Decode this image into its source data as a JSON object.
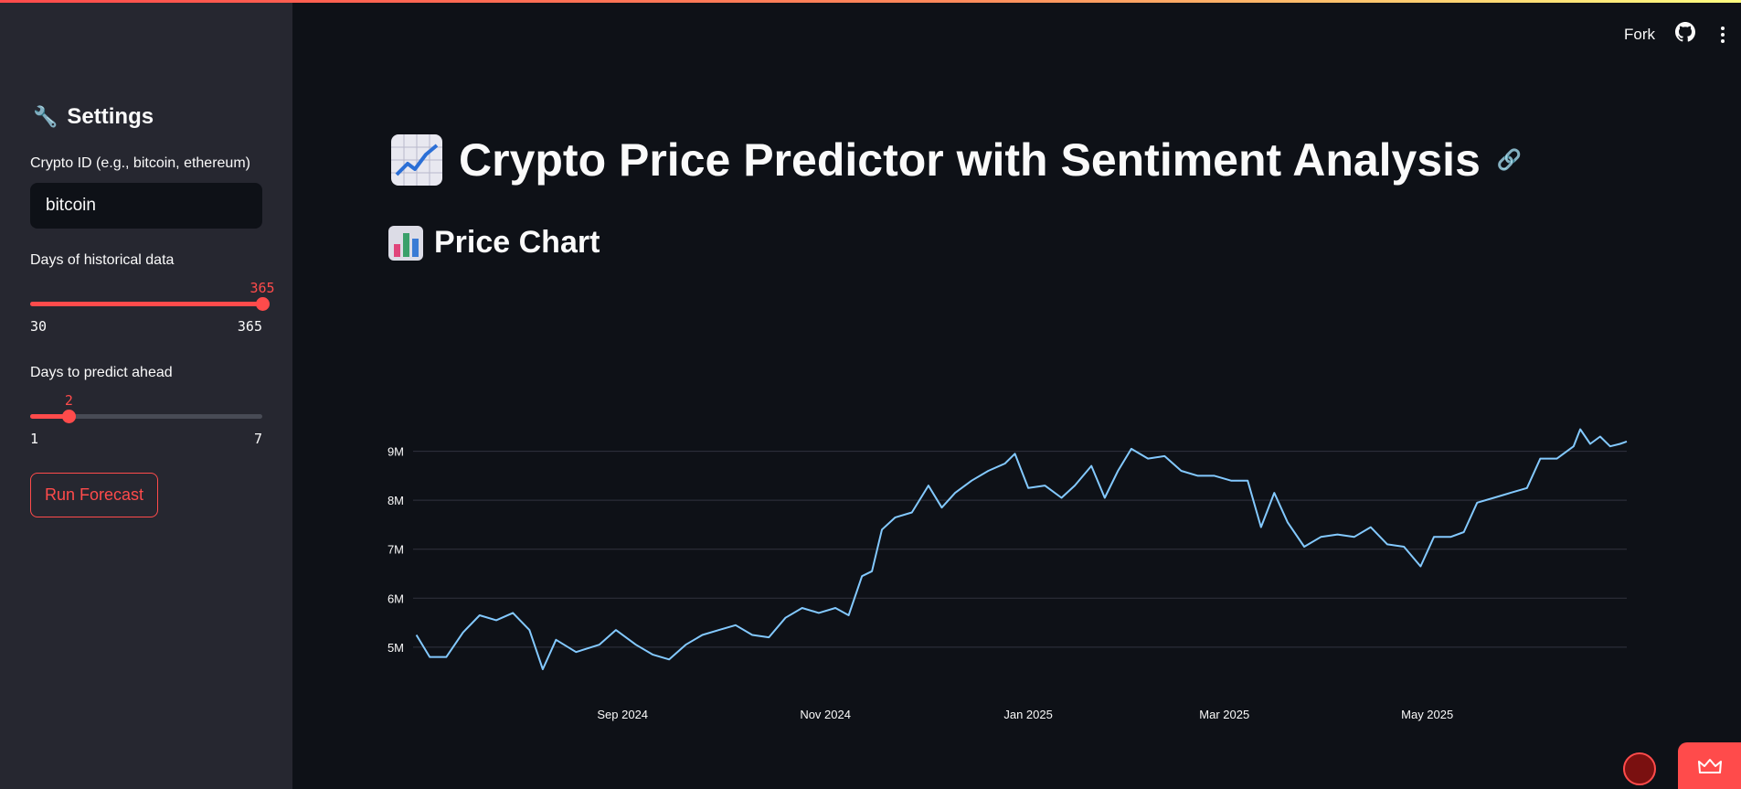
{
  "sidebar": {
    "title": "Settings",
    "title_icon": "wrench-icon",
    "crypto_label": "Crypto ID (e.g., bitcoin, ethereum)",
    "crypto_value": "bitcoin",
    "days_label": "Days of historical data",
    "days_value": "365",
    "days_min": "30",
    "days_max": "365",
    "days_fraction": 1.0,
    "predict_label": "Days to predict ahead",
    "predict_value": "2",
    "predict_min": "1",
    "predict_max": "7",
    "predict_fraction": 0.1667,
    "run_button": "Run Forecast"
  },
  "header": {
    "fork_label": "Fork"
  },
  "main": {
    "title": "Crypto Price Predictor with Sentiment Analysis",
    "section_title": "Price Chart"
  },
  "colors": {
    "accent": "#ff4b4b",
    "line": "#83c9ff",
    "background": "#0e1117",
    "sidebar": "#262730"
  },
  "chart_data": {
    "type": "line",
    "title": "",
    "xlabel": "",
    "ylabel": "",
    "y_ticks": [
      5000000,
      6000000,
      7000000,
      8000000,
      9000000
    ],
    "y_tick_labels": [
      "5M",
      "6M",
      "7M",
      "8M",
      "9M"
    ],
    "ylim": [
      4400000,
      10000000
    ],
    "x_ticks": [
      "2024-09-01",
      "2024-11-01",
      "2025-01-01",
      "2025-03-01",
      "2025-05-01"
    ],
    "x_tick_labels": [
      "Sep 2024",
      "Nov 2024",
      "Jan 2025",
      "Mar 2025",
      "May 2025"
    ],
    "xlim": [
      "2024-06-30",
      "2025-06-30"
    ],
    "grid": true,
    "series": [
      {
        "color": "#83c9ff",
        "points": [
          [
            "2024-07-01",
            5250000
          ],
          [
            "2024-07-05",
            4800000
          ],
          [
            "2024-07-10",
            4800000
          ],
          [
            "2024-07-15",
            5300000
          ],
          [
            "2024-07-20",
            5650000
          ],
          [
            "2024-07-25",
            5550000
          ],
          [
            "2024-07-30",
            5700000
          ],
          [
            "2024-08-04",
            5350000
          ],
          [
            "2024-08-08",
            4550000
          ],
          [
            "2024-08-12",
            5150000
          ],
          [
            "2024-08-18",
            4900000
          ],
          [
            "2024-08-25",
            5050000
          ],
          [
            "2024-08-30",
            5350000
          ],
          [
            "2024-09-05",
            5050000
          ],
          [
            "2024-09-10",
            4850000
          ],
          [
            "2024-09-15",
            4750000
          ],
          [
            "2024-09-20",
            5050000
          ],
          [
            "2024-09-25",
            5250000
          ],
          [
            "2024-09-30",
            5350000
          ],
          [
            "2024-10-05",
            5450000
          ],
          [
            "2024-10-10",
            5250000
          ],
          [
            "2024-10-15",
            5200000
          ],
          [
            "2024-10-20",
            5600000
          ],
          [
            "2024-10-25",
            5800000
          ],
          [
            "2024-10-30",
            5700000
          ],
          [
            "2024-11-04",
            5800000
          ],
          [
            "2024-11-08",
            5650000
          ],
          [
            "2024-11-12",
            6450000
          ],
          [
            "2024-11-15",
            6550000
          ],
          [
            "2024-11-18",
            7400000
          ],
          [
            "2024-11-22",
            7650000
          ],
          [
            "2024-11-27",
            7750000
          ],
          [
            "2024-12-02",
            8300000
          ],
          [
            "2024-12-06",
            7850000
          ],
          [
            "2024-12-10",
            8150000
          ],
          [
            "2024-12-15",
            8400000
          ],
          [
            "2024-12-20",
            8600000
          ],
          [
            "2024-12-25",
            8750000
          ],
          [
            "2024-12-28",
            8950000
          ],
          [
            "2025-01-01",
            8250000
          ],
          [
            "2025-01-06",
            8300000
          ],
          [
            "2025-01-11",
            8050000
          ],
          [
            "2025-01-15",
            8300000
          ],
          [
            "2025-01-20",
            8700000
          ],
          [
            "2025-01-24",
            8050000
          ],
          [
            "2025-01-28",
            8600000
          ],
          [
            "2025-02-01",
            9050000
          ],
          [
            "2025-02-06",
            8850000
          ],
          [
            "2025-02-11",
            8900000
          ],
          [
            "2025-02-16",
            8600000
          ],
          [
            "2025-02-21",
            8500000
          ],
          [
            "2025-02-26",
            8500000
          ],
          [
            "2025-03-03",
            8400000
          ],
          [
            "2025-03-08",
            8400000
          ],
          [
            "2025-03-12",
            7450000
          ],
          [
            "2025-03-16",
            8150000
          ],
          [
            "2025-03-20",
            7550000
          ],
          [
            "2025-03-25",
            7050000
          ],
          [
            "2025-03-30",
            7250000
          ],
          [
            "2025-04-04",
            7300000
          ],
          [
            "2025-04-09",
            7250000
          ],
          [
            "2025-04-14",
            7450000
          ],
          [
            "2025-04-19",
            7100000
          ],
          [
            "2025-04-24",
            7050000
          ],
          [
            "2025-04-29",
            6650000
          ],
          [
            "2025-05-03",
            7250000
          ],
          [
            "2025-05-08",
            7250000
          ],
          [
            "2025-05-12",
            7350000
          ],
          [
            "2025-05-16",
            7950000
          ],
          [
            "2025-05-21",
            8050000
          ],
          [
            "2025-05-26",
            8150000
          ],
          [
            "2025-05-31",
            8250000
          ],
          [
            "2025-06-04",
            8850000
          ],
          [
            "2025-06-09",
            8850000
          ],
          [
            "2025-06-14",
            9100000
          ],
          [
            "2025-06-16",
            9450000
          ],
          [
            "2025-06-19",
            9150000
          ],
          [
            "2025-06-22",
            9300000
          ],
          [
            "2025-06-25",
            9100000
          ],
          [
            "2025-06-28",
            9150000
          ],
          [
            "2025-06-30",
            9200000
          ]
        ]
      }
    ]
  }
}
